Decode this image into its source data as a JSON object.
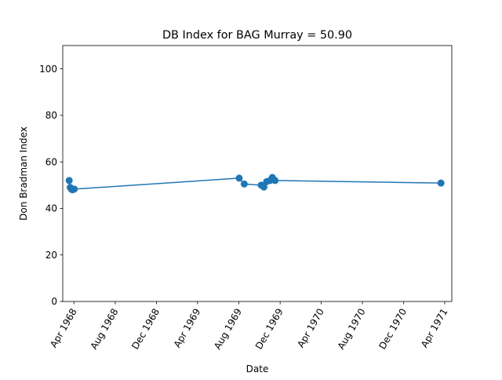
{
  "chart_data": {
    "type": "line",
    "title": "DB Index for BAG Murray = 50.90",
    "xlabel": "Date",
    "ylabel": "Don Bradman Index",
    "xlim": [
      "1968-02-28",
      "1971-04-22"
    ],
    "ylim": [
      0,
      110
    ],
    "x_ticks": [
      "1968-04-01",
      "1968-08-01",
      "1968-12-01",
      "1969-04-01",
      "1969-08-01",
      "1969-12-01",
      "1970-04-01",
      "1970-08-01",
      "1970-12-01",
      "1971-04-01"
    ],
    "x_tick_labels": [
      "Apr 1968",
      "Aug 1968",
      "Dec 1968",
      "Apr 1969",
      "Aug 1969",
      "Dec 1969",
      "Apr 1970",
      "Aug 1970",
      "Dec 1970",
      "Apr 1971"
    ],
    "y_ticks": [
      0,
      20,
      40,
      60,
      80,
      100
    ],
    "grid": false,
    "series": [
      {
        "color": "#1f77b4",
        "marker": "circle",
        "points": [
          {
            "x": "1968-03-18",
            "y": 52.0
          },
          {
            "x": "1968-03-21",
            "y": 49.0
          },
          {
            "x": "1968-03-25",
            "y": 48.2
          },
          {
            "x": "1968-03-28",
            "y": 48.0
          },
          {
            "x": "1968-04-02",
            "y": 48.3
          },
          {
            "x": "1969-08-02",
            "y": 53.0
          },
          {
            "x": "1969-08-17",
            "y": 50.5
          },
          {
            "x": "1969-10-06",
            "y": 50.0
          },
          {
            "x": "1969-10-14",
            "y": 49.2
          },
          {
            "x": "1969-10-22",
            "y": 51.5
          },
          {
            "x": "1969-11-01",
            "y": 52.0
          },
          {
            "x": "1969-11-08",
            "y": 53.3
          },
          {
            "x": "1969-11-16",
            "y": 52.0
          },
          {
            "x": "1971-03-21",
            "y": 50.9
          }
        ]
      }
    ]
  }
}
